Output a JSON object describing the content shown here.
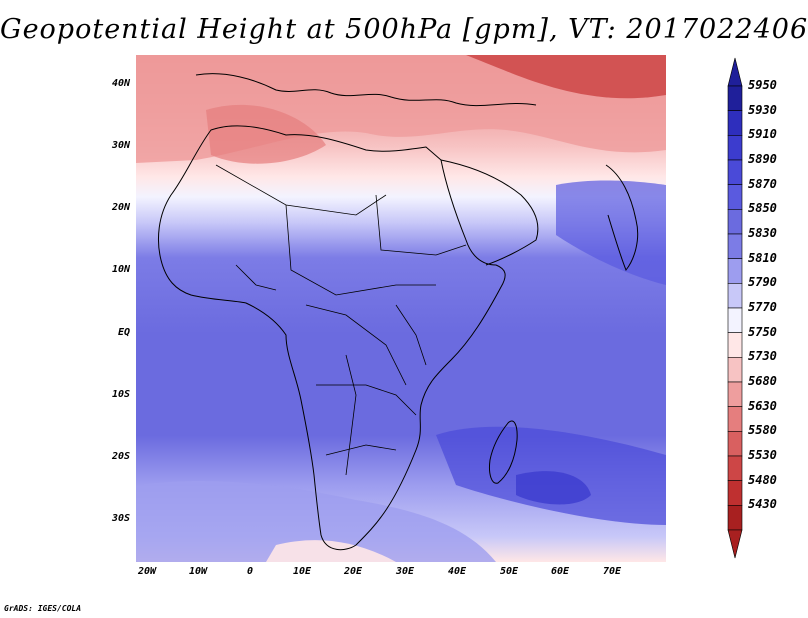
{
  "title": "Geopotential Height at 500hPa [gpm], VT: 2017022406",
  "credit": "GrADS: IGES/COLA",
  "lat_labels": [
    "40N",
    "30N",
    "20N",
    "10N",
    "EQ",
    "10S",
    "20S",
    "30S"
  ],
  "lon_labels": [
    "20W",
    "10W",
    "0",
    "10E",
    "20E",
    "30E",
    "40E",
    "50E",
    "60E",
    "70E"
  ],
  "colorbar": {
    "levels": [
      "5950",
      "5930",
      "5910",
      "5890",
      "5870",
      "5850",
      "5830",
      "5810",
      "5790",
      "5770",
      "5750",
      "5730",
      "5680",
      "5630",
      "5580",
      "5530",
      "5480",
      "5430"
    ],
    "colors": [
      "#1f1f9a",
      "#2e2ebd",
      "#3c3cce",
      "#4a4ad8",
      "#5a5adf",
      "#6b6bdf",
      "#7c7ce6",
      "#9d9def",
      "#c8c8f8",
      "#f3f3ff",
      "#ffe7e7",
      "#f7c3c3",
      "#ee9e9e",
      "#e57e7e",
      "#d96060",
      "#cd4646",
      "#bf3030",
      "#a82020"
    ]
  },
  "map": {
    "region": "Africa",
    "lon_range": [
      -22,
      80
    ],
    "lat_range": [
      -37,
      45
    ]
  }
}
